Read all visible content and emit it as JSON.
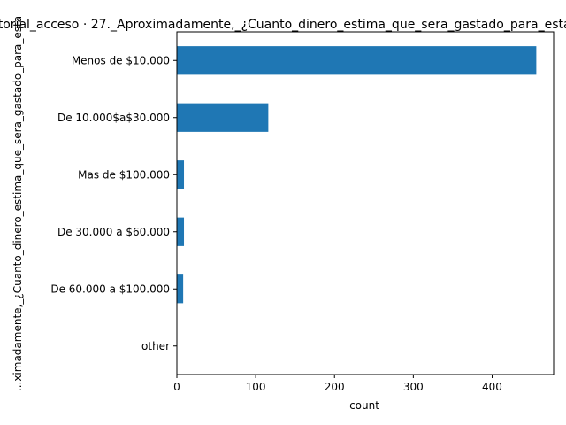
{
  "chart_data": {
    "type": "bar",
    "orientation": "horizontal",
    "title": "...torial_acceso · 27._Aproximadamente,_¿Cuanto_dinero_estima_que_sera_gastado_para_esta",
    "xlabel": "count",
    "ylabel": "...ximadamente,_¿Cuanto_dinero_estima_que_sera_gastado_para_esta",
    "categories": [
      "Menos de $10.000",
      "De 10.000$a$30.000",
      "Mas de $100.000",
      "De 30.000 a $60.000",
      "De 60.000 a $100.000",
      "other"
    ],
    "values": [
      456,
      116,
      9,
      9,
      8,
      0
    ],
    "xlim": [
      0,
      478
    ],
    "xticks": [
      0,
      100,
      200,
      300,
      400
    ],
    "grid": false,
    "bar_color": "#1f77b4"
  }
}
